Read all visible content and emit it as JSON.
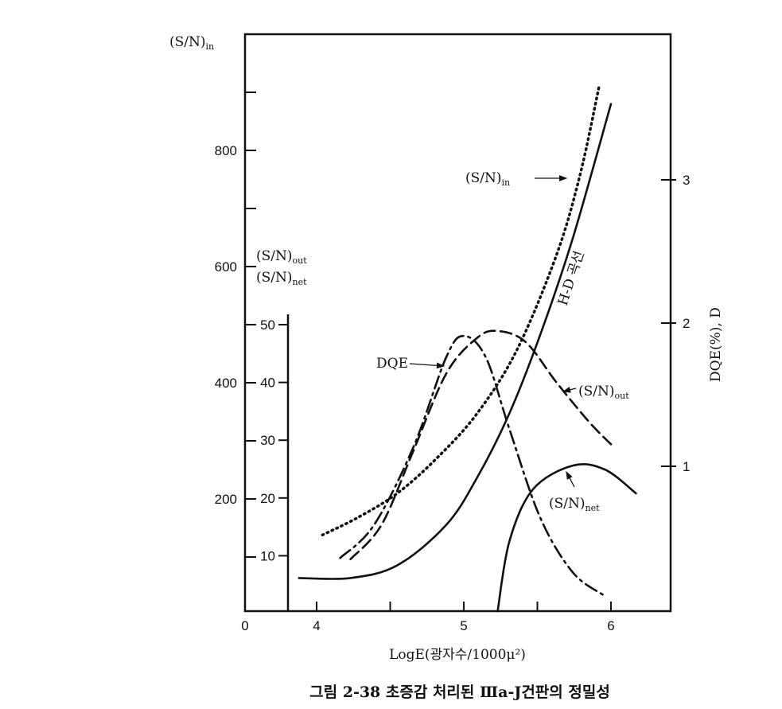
{
  "chart_data": {
    "type": "line",
    "caption": "그림 2-38  초증감 처리된 Ⅲa-J건판의 정밀성",
    "xlabel": "LogE(광자수/1000μ²)",
    "xticks": [
      "0",
      "4",
      "5",
      "6"
    ],
    "xlim": [
      3.5,
      6.4
    ],
    "axes": {
      "left": {
        "label": "(S/N)in",
        "ticks": [
          "200",
          "400",
          "600",
          "800"
        ],
        "ylim": [
          0,
          1000
        ]
      },
      "inner": {
        "label_1": "(S/N)out",
        "label_2": "(S/N)net",
        "ticks": [
          "10",
          "20",
          "30",
          "40",
          "50"
        ],
        "ylim": [
          0,
          50
        ]
      },
      "right": {
        "label": "DQE(%), D",
        "ticks": [
          "1",
          "2",
          "3"
        ],
        "ylim": [
          0,
          4
        ]
      }
    },
    "series": [
      {
        "name": "H-D 곡선",
        "axis": "right",
        "style": "solid",
        "x": [
          3.88,
          4.23,
          4.55,
          4.88,
          5.09,
          5.31,
          5.52,
          5.74,
          6.0
        ],
        "y": [
          0.22,
          0.22,
          0.31,
          0.59,
          0.92,
          1.37,
          1.92,
          2.59,
          3.53
        ]
      },
      {
        "name": "(S/N)in",
        "axis": "left",
        "style": "dotted",
        "x": [
          4.04,
          4.28,
          4.55,
          4.82,
          5.09,
          5.36,
          5.63,
          5.79,
          5.92
        ],
        "y": [
          138,
          168,
          210,
          271,
          347,
          456,
          620,
          758,
          911
        ]
      },
      {
        "name": "(S/N)out",
        "axis": "inner",
        "style": "dashed",
        "x": [
          4.23,
          4.44,
          4.65,
          4.88,
          5.09,
          5.23,
          5.42,
          5.63,
          5.85,
          6.0
        ],
        "y": [
          9.4,
          15.3,
          27.7,
          41.5,
          47.7,
          48.9,
          47,
          40,
          33.2,
          29.3
        ]
      },
      {
        "name": "DQE",
        "axis": "right",
        "style": "dashdot",
        "x": [
          4.16,
          4.39,
          4.66,
          4.88,
          5.0,
          5.15,
          5.31,
          5.52,
          5.74,
          5.95
        ],
        "y": [
          0.36,
          0.59,
          1.14,
          1.76,
          1.91,
          1.76,
          1.26,
          0.64,
          0.26,
          0.1
        ]
      },
      {
        "name": "(S/N)net",
        "axis": "inner",
        "style": "solid",
        "x": [
          5.23,
          5.31,
          5.47,
          5.74,
          5.96,
          6.17
        ],
        "y": [
          0.4,
          12.5,
          21.5,
          25.6,
          24.9,
          20.8
        ]
      }
    ],
    "annotations": {
      "sn_in": "(S/N)in",
      "hd": "H-D 곡선",
      "dqe": "DQE",
      "sn_out": "(S/N)out",
      "sn_net": "(S/N)net"
    }
  }
}
